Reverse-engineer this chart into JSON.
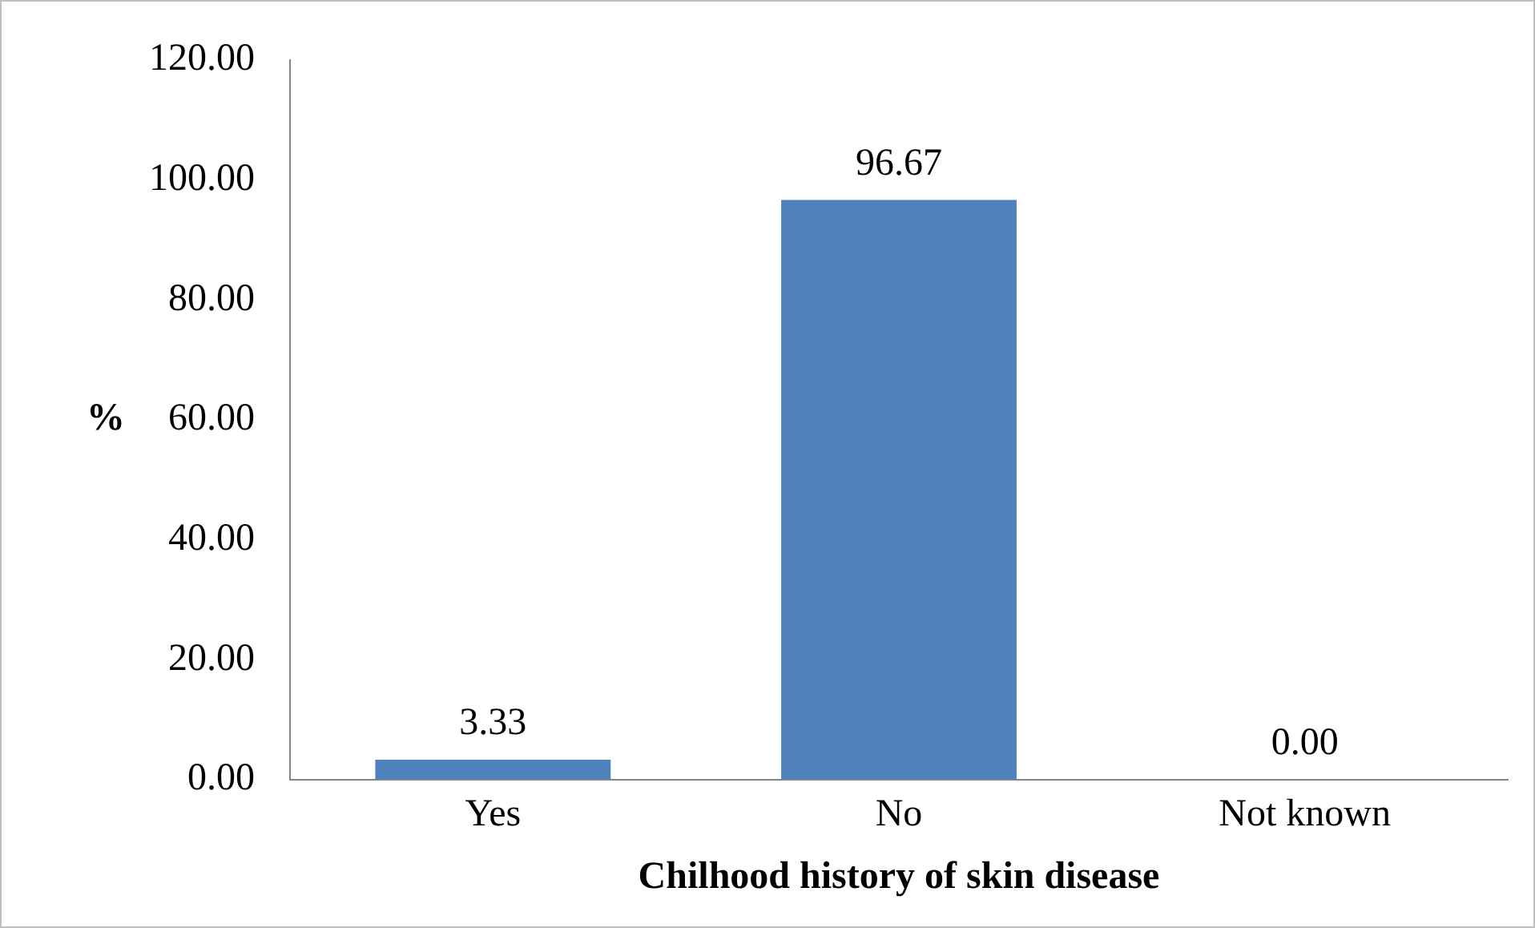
{
  "chart_data": {
    "type": "bar",
    "xlabel": "Chilhood history of skin disease",
    "ylabel": "%",
    "categories": [
      "Yes",
      "No",
      "Not known"
    ],
    "values": [
      3.33,
      96.67,
      0
    ],
    "value_labels": [
      "3.33",
      "96.67",
      "0.00"
    ],
    "color": "#4f81bd",
    "ylim": [
      0,
      120
    ],
    "yticks": [
      {
        "value": 0,
        "label": "0.00"
      },
      {
        "value": 20,
        "label": "20.00"
      },
      {
        "value": 40,
        "label": "40.00"
      },
      {
        "value": 60,
        "label": "60.00"
      },
      {
        "value": 80,
        "label": "80.00"
      },
      {
        "value": 100,
        "label": "100.00"
      },
      {
        "value": 120,
        "label": "120.00"
      }
    ],
    "grid": false,
    "legend": false
  }
}
